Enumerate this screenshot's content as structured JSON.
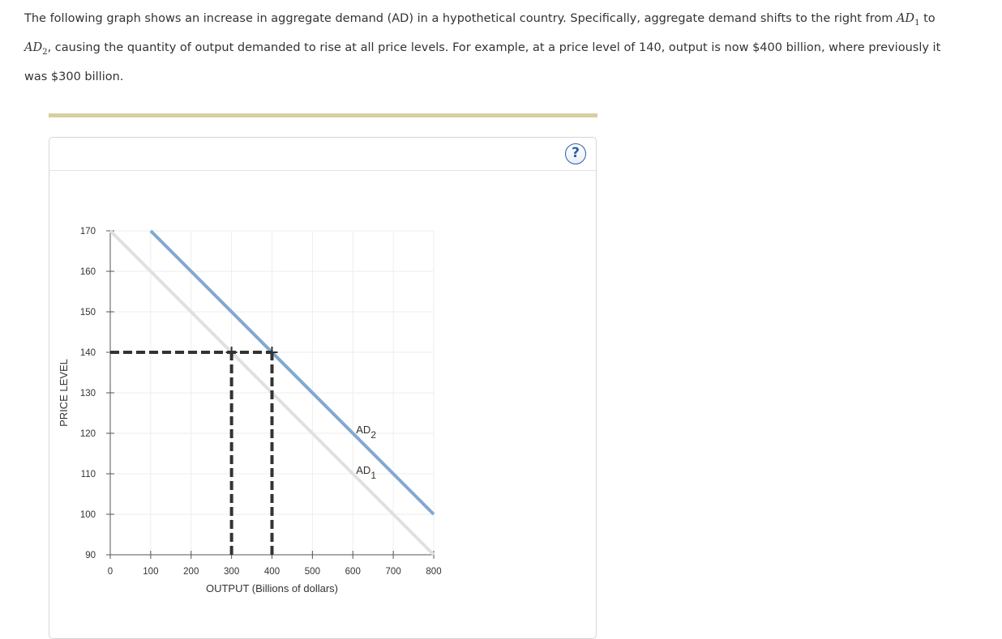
{
  "intro": {
    "text_1": "The following graph shows an increase in aggregate demand (AD) in a hypothetical country. Specifically, aggregate demand shifts to the right from ",
    "math_1": "AD",
    "math_1_sub": "1",
    "text_2": " to ",
    "math_2": "AD",
    "math_2_sub": "2",
    "text_3": ", causing the quantity of output demanded to rise at all price levels. For example, at a price level of 140, output is now $400 billion, where previously it was $300 billion."
  },
  "help": {
    "label": "?"
  },
  "chart_data": {
    "type": "line",
    "xlabel": "OUTPUT (Billions of dollars)",
    "ylabel": "PRICE LEVEL",
    "xlim": [
      0,
      800
    ],
    "ylim": [
      90,
      170
    ],
    "x_ticks": [
      0,
      100,
      200,
      300,
      400,
      500,
      600,
      700,
      800
    ],
    "y_ticks": [
      90,
      100,
      110,
      120,
      130,
      140,
      150,
      160,
      170
    ],
    "grid": true,
    "series": [
      {
        "name": "AD",
        "subscript": "1",
        "color": "#e0e0e0",
        "points": [
          [
            0,
            170
          ],
          [
            800,
            90
          ]
        ],
        "label_at": [
          600,
          110
        ]
      },
      {
        "name": "AD",
        "subscript": "2",
        "color": "#80a9d2",
        "points": [
          [
            100,
            170
          ],
          [
            800,
            100
          ]
        ],
        "label_at": [
          600,
          120
        ]
      }
    ],
    "reference_lines": [
      {
        "name": "price-140-guide",
        "from": [
          0,
          140
        ],
        "to": [
          400,
          140
        ],
        "color": "#333333"
      },
      {
        "name": "output-300-guide",
        "from": [
          300,
          90
        ],
        "to": [
          300,
          140
        ],
        "color": "#333333"
      },
      {
        "name": "output-400-guide",
        "from": [
          400,
          90
        ],
        "to": [
          400,
          140
        ],
        "color": "#333333"
      }
    ],
    "markers": [
      {
        "name": "point-ad1-140",
        "x": 300,
        "y": 140
      },
      {
        "name": "point-ad2-140",
        "x": 400,
        "y": 140
      }
    ]
  }
}
